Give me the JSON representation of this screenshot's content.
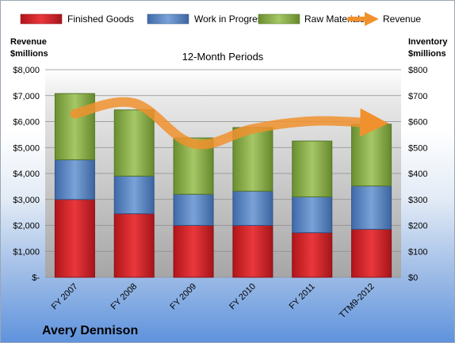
{
  "chart_data": {
    "type": "bar",
    "title": "",
    "subtitle": "12-Month Periods",
    "company": "Avery Dennison",
    "categories": [
      "FY 2007",
      "FY 2008",
      "FY 2009",
      "FY 2010",
      "FY 2011",
      "TTM9-2012"
    ],
    "stacked": true,
    "series": [
      {
        "name": "Finished Goods",
        "axis": "right",
        "color": "#e0262a",
        "values": [
          300,
          245,
          200,
          200,
          172,
          185
        ]
      },
      {
        "name": "Work in Progress",
        "axis": "right",
        "color": "#5a86c5",
        "values": [
          153,
          145,
          120,
          132,
          138,
          167
        ]
      },
      {
        "name": "Raw Materials",
        "axis": "right",
        "color": "#8db54a",
        "values": [
          255,
          255,
          217,
          245,
          215,
          238
        ]
      },
      {
        "name": "Revenue",
        "axis": "left",
        "type": "line",
        "color": "#f0912e",
        "values": [
          6300,
          6710,
          5150,
          5720,
          6020,
          5950
        ]
      }
    ],
    "left_axis": {
      "label_line1": "Revenue",
      "label_line2": "$millions",
      "ylim": [
        0,
        8000
      ],
      "ticks": [
        "$-",
        "$1,000",
        "$2,000",
        "$3,000",
        "$4,000",
        "$5,000",
        "$6,000",
        "$7,000",
        "$8,000"
      ]
    },
    "right_axis": {
      "label_line1": "Inventory",
      "label_line2": "$millions",
      "ylim": [
        0,
        800
      ],
      "ticks": [
        "$0",
        "$100",
        "$200",
        "$300",
        "$400",
        "$500",
        "$600",
        "$700",
        "$800"
      ]
    },
    "legend_position": "top",
    "grid": true
  }
}
